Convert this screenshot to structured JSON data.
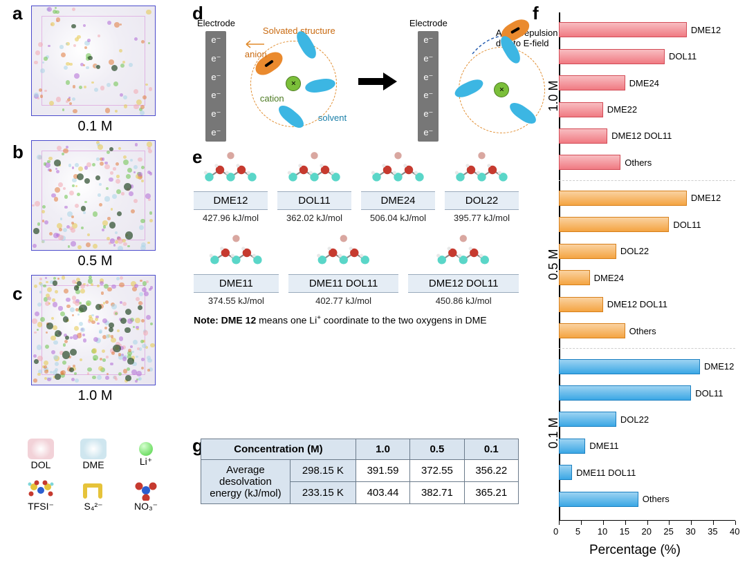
{
  "panel_labels": {
    "a": "a",
    "b": "b",
    "c": "c",
    "d": "d",
    "e": "e",
    "f": "f",
    "g": "g"
  },
  "md_boxes": {
    "a": {
      "caption": "0.1 M",
      "density": 0.12
    },
    "b": {
      "caption": "0.5 M",
      "density": 0.35
    },
    "c": {
      "caption": "1.0 M",
      "density": 0.75
    }
  },
  "legend": {
    "row1": [
      {
        "name": "DOL",
        "kind": "cloud",
        "color": "#f2d2d8"
      },
      {
        "name": "DME",
        "kind": "cloud",
        "color": "#cfe6ef"
      },
      {
        "name": "Li⁺",
        "kind": "ball",
        "color": "#4bd13f"
      }
    ],
    "row2": [
      {
        "name": "TFSI⁻",
        "kind": "tfsi"
      },
      {
        "name": "S₄²⁻",
        "kind": "s4"
      },
      {
        "name": "NO₃⁻",
        "kind": "no3"
      }
    ]
  },
  "panel_d": {
    "electrode_title": "Electrode",
    "electrode_charges": [
      "e⁻",
      "e⁻",
      "e⁻",
      "e⁻",
      "e⁻",
      "e⁻"
    ],
    "solvated_label": "Solvated structure",
    "anion_label": "anion",
    "cation_label": "cation",
    "solvent_label": "solvent",
    "repulsion_label": "Anion repulsion due to E-field",
    "colors": {
      "electrode": "#777777",
      "anion": "#ea8a2e",
      "cation": "#7bbf3a",
      "solvent": "#3cb6e3",
      "dash": "#e08a2a"
    }
  },
  "panel_e": {
    "note_html": "Note: DME 12 means one Li⁺ coordinate to the two oxygens in DME",
    "energy_unit": "kJ/mol",
    "row1": [
      {
        "name": "DME12",
        "energy": 427.96
      },
      {
        "name": "DOL11",
        "energy": 362.02
      },
      {
        "name": "DME24",
        "energy": 506.04
      },
      {
        "name": "DOL22",
        "energy": 395.77
      }
    ],
    "row2": [
      {
        "name": "DME11",
        "energy": 374.55
      },
      {
        "name": "DME11 DOL11",
        "energy": 402.77
      },
      {
        "name": "DME12 DOL11",
        "energy": 450.86
      }
    ],
    "atom_colors": {
      "C": "#5ad6c8",
      "O": "#c63a2f",
      "H": "#e8e8e8",
      "Li": "#d9a7a0"
    }
  },
  "panel_g": {
    "header": [
      "Concentration (M)",
      "1.0",
      "0.5",
      "0.1"
    ],
    "row_label": "Average desolvation energy (kJ/mol)",
    "rows": [
      {
        "temp": "298.15 K",
        "values": [
          "391.59",
          "372.55",
          "356.22"
        ]
      },
      {
        "temp": "233.15 K",
        "values": [
          "403.44",
          "382.71",
          "365.21"
        ]
      }
    ],
    "header_bg": "#d9e4ef",
    "border_color": "#6a7a8a"
  },
  "panel_f": {
    "xlabel": "Percentage (%)",
    "xlim": [
      0,
      40
    ],
    "xtick_step": 5,
    "bar_gradient_light": 0.35,
    "groups": [
      {
        "label": "1.0 M",
        "color_fill": "#f07a82",
        "color_edge": "#d24a55",
        "bars": [
          {
            "label": "DME12",
            "value": 29
          },
          {
            "label": "DOL11",
            "value": 24
          },
          {
            "label": "DME24",
            "value": 15
          },
          {
            "label": "DME22",
            "value": 10
          },
          {
            "label": "DME12 DOL11",
            "value": 11
          },
          {
            "label": "Others",
            "value": 14
          }
        ]
      },
      {
        "label": "0.5 M",
        "color_fill": "#f4a442",
        "color_edge": "#d67f1a",
        "bars": [
          {
            "label": "DME12",
            "value": 29
          },
          {
            "label": "DOL11",
            "value": 25
          },
          {
            "label": "DOL22",
            "value": 13
          },
          {
            "label": "DME24",
            "value": 7
          },
          {
            "label": "DME12 DOL11",
            "value": 10
          },
          {
            "label": "Others",
            "value": 15
          }
        ]
      },
      {
        "label": "0.1 M",
        "color_fill": "#3ba7e5",
        "color_edge": "#1a7fc0",
        "bars": [
          {
            "label": "DME12",
            "value": 32
          },
          {
            "label": "DOL11",
            "value": 30
          },
          {
            "label": "DOL22",
            "value": 13
          },
          {
            "label": "DME11",
            "value": 6
          },
          {
            "label": "DME11 DOL11",
            "value": 3
          },
          {
            "label": "Others",
            "value": 18
          }
        ]
      }
    ]
  }
}
